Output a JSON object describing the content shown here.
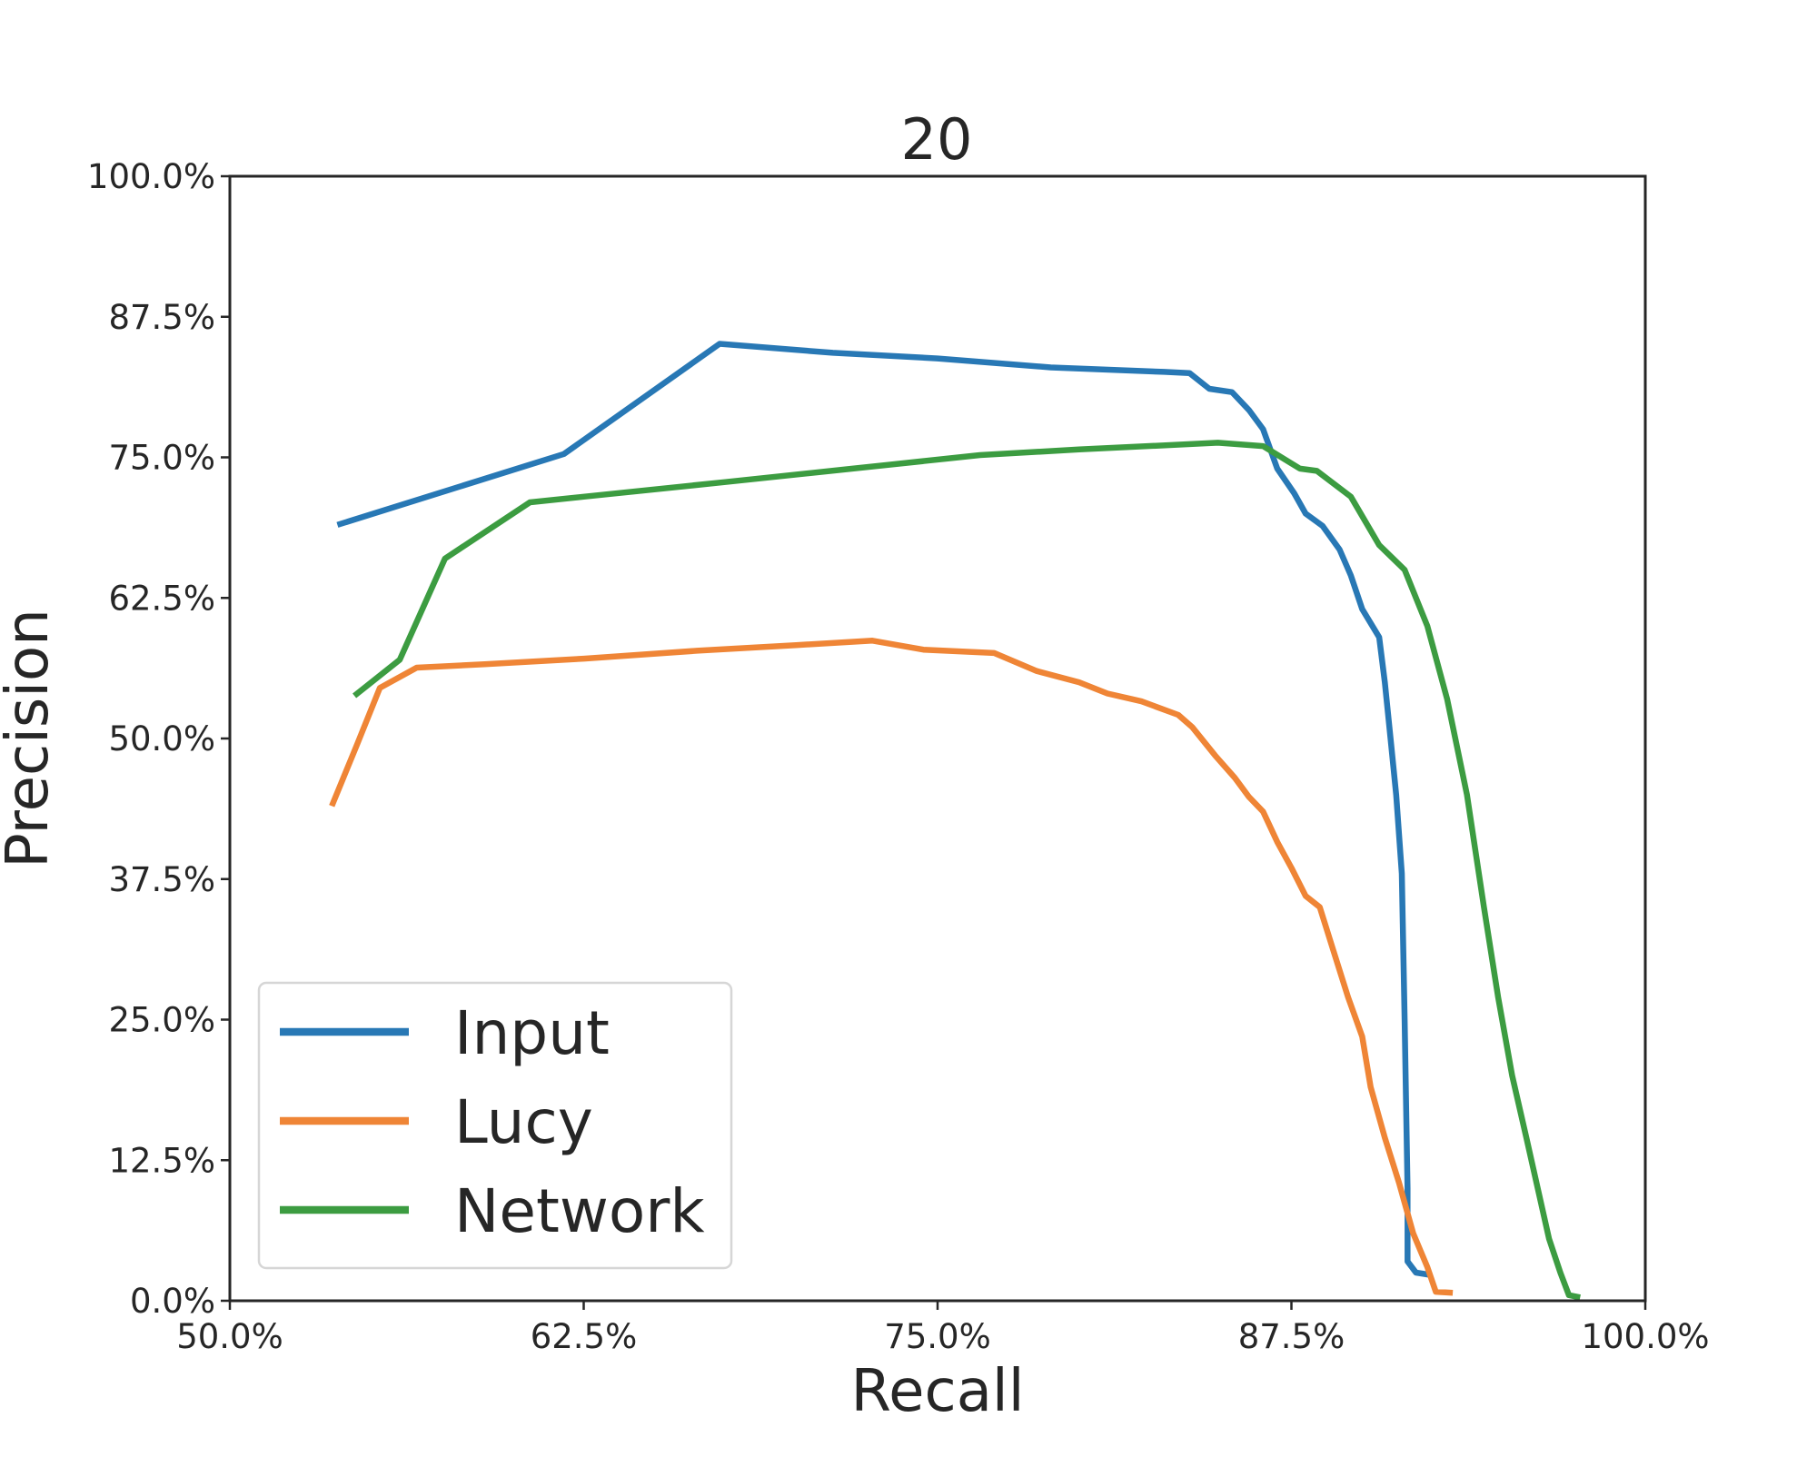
{
  "chart_data": {
    "type": "line",
    "title": "20",
    "xlabel": "Recall",
    "ylabel": "Precision",
    "xlim": [
      50.0,
      100.0
    ],
    "ylim": [
      0.0,
      100.0
    ],
    "x_ticks": [
      50.0,
      62.5,
      75.0,
      87.5,
      100.0
    ],
    "y_ticks": [
      0.0,
      12.5,
      25.0,
      37.5,
      50.0,
      62.5,
      75.0,
      87.5,
      100.0
    ],
    "x_tick_labels": [
      "50.0%",
      "62.5%",
      "75.0%",
      "87.5%",
      "100.0%"
    ],
    "y_tick_labels": [
      "0.0%",
      "12.5%",
      "25.0%",
      "37.5%",
      "50.0%",
      "62.5%",
      "75.0%",
      "87.5%",
      "100.0%"
    ],
    "grid": false,
    "legend_position": "lower-left",
    "series": [
      {
        "name": "Input",
        "color": "#2878b5",
        "points": [
          [
            53.8,
            69.0
          ],
          [
            61.8,
            75.3
          ],
          [
            67.3,
            85.1
          ],
          [
            71.3,
            84.3
          ],
          [
            75.0,
            83.8
          ],
          [
            79.0,
            83.0
          ],
          [
            83.0,
            82.6
          ],
          [
            83.9,
            82.5
          ],
          [
            84.6,
            81.1
          ],
          [
            85.4,
            80.8
          ],
          [
            86.0,
            79.2
          ],
          [
            86.5,
            77.5
          ],
          [
            87.0,
            74.0
          ],
          [
            87.6,
            71.8
          ],
          [
            88.0,
            70.0
          ],
          [
            88.6,
            68.9
          ],
          [
            89.2,
            66.8
          ],
          [
            89.6,
            64.5
          ],
          [
            90.0,
            61.5
          ],
          [
            90.6,
            59.0
          ],
          [
            90.8,
            55.0
          ],
          [
            91.0,
            50.0
          ],
          [
            91.2,
            45.0
          ],
          [
            91.4,
            38.0
          ],
          [
            91.5,
            25.0
          ],
          [
            91.6,
            10.0
          ],
          [
            91.6,
            3.5
          ],
          [
            91.9,
            2.5
          ],
          [
            92.4,
            2.3
          ]
        ]
      },
      {
        "name": "Lucy",
        "color": "#ef8536",
        "points": [
          [
            53.6,
            44.0
          ],
          [
            54.5,
            49.5
          ],
          [
            55.3,
            54.5
          ],
          [
            56.6,
            56.3
          ],
          [
            59.0,
            56.6
          ],
          [
            62.5,
            57.1
          ],
          [
            66.5,
            57.8
          ],
          [
            70.0,
            58.3
          ],
          [
            72.7,
            58.7
          ],
          [
            74.5,
            57.9
          ],
          [
            77.0,
            57.6
          ],
          [
            78.5,
            56.0
          ],
          [
            80.0,
            55.0
          ],
          [
            81.0,
            54.0
          ],
          [
            82.2,
            53.3
          ],
          [
            83.5,
            52.1
          ],
          [
            84.0,
            51.0
          ],
          [
            84.8,
            48.5
          ],
          [
            85.5,
            46.5
          ],
          [
            86.0,
            44.8
          ],
          [
            86.5,
            43.5
          ],
          [
            87.0,
            40.8
          ],
          [
            87.5,
            38.5
          ],
          [
            88.0,
            36.0
          ],
          [
            88.5,
            35.0
          ],
          [
            89.0,
            31.0
          ],
          [
            89.5,
            27.0
          ],
          [
            90.0,
            23.5
          ],
          [
            90.3,
            19.0
          ],
          [
            90.8,
            14.5
          ],
          [
            91.3,
            10.5
          ],
          [
            91.8,
            6.0
          ],
          [
            92.3,
            3.0
          ],
          [
            92.6,
            0.8
          ],
          [
            93.2,
            0.7
          ]
        ]
      },
      {
        "name": "Network",
        "color": "#3c9c41",
        "points": [
          [
            54.4,
            53.8
          ],
          [
            56.0,
            57.0
          ],
          [
            57.6,
            66.0
          ],
          [
            60.6,
            71.0
          ],
          [
            62.5,
            71.5
          ],
          [
            67.5,
            72.8
          ],
          [
            72.0,
            74.0
          ],
          [
            76.5,
            75.2
          ],
          [
            80.0,
            75.7
          ],
          [
            84.9,
            76.3
          ],
          [
            86.5,
            76.0
          ],
          [
            87.8,
            74.0
          ],
          [
            88.4,
            73.8
          ],
          [
            89.6,
            71.5
          ],
          [
            90.6,
            67.2
          ],
          [
            91.5,
            65.0
          ],
          [
            92.3,
            60.0
          ],
          [
            93.0,
            53.5
          ],
          [
            93.7,
            45.0
          ],
          [
            94.3,
            35.0
          ],
          [
            94.8,
            27.0
          ],
          [
            95.3,
            20.0
          ],
          [
            95.8,
            14.5
          ],
          [
            96.2,
            10.0
          ],
          [
            96.6,
            5.5
          ],
          [
            97.0,
            2.5
          ],
          [
            97.3,
            0.5
          ],
          [
            97.7,
            0.3
          ]
        ]
      }
    ]
  }
}
